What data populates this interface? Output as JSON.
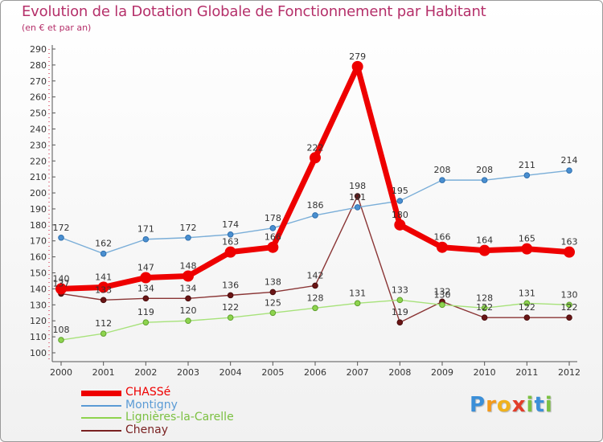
{
  "title": "Evolution de la Dotation Globale de Fonctionnement par Habitant",
  "subtitle": "(en € et par an)",
  "brand": {
    "letters": [
      "P",
      "r",
      "o",
      "x",
      "i",
      "t",
      "i"
    ],
    "colors": [
      "#3b8fd8",
      "#f39a1c",
      "#f0b21c",
      "#e23d2a",
      "#7cc142",
      "#3b8fd8",
      "#7cc142"
    ]
  },
  "chart_data": {
    "type": "line",
    "title": "Evolution de la Dotation Globale de Fonctionnement par Habitant",
    "xlabel": "",
    "ylabel": "",
    "x": [
      "2000",
      "2001",
      "2002",
      "2003",
      "2004",
      "2005",
      "2006",
      "2007",
      "2008",
      "2009",
      "2010",
      "2011",
      "2012"
    ],
    "ylim": [
      100,
      290
    ],
    "yticks": [
      100,
      110,
      120,
      130,
      140,
      150,
      160,
      170,
      180,
      190,
      200,
      210,
      220,
      230,
      240,
      250,
      260,
      270,
      280,
      290
    ],
    "grid": false,
    "legend_position": "bottom-left",
    "series": [
      {
        "name": "CHASSé",
        "color": "#ee0000",
        "values": [
          140,
          141,
          147,
          148,
          163,
          166,
          222,
          279,
          180,
          166,
          164,
          165,
          163
        ]
      },
      {
        "name": "Montigny",
        "color": "#5b9bd5",
        "values": [
          172,
          162,
          171,
          172,
          174,
          178,
          186,
          191,
          195,
          208,
          208,
          211,
          214
        ]
      },
      {
        "name": "Lignières-la-Carelle",
        "color": "#8ed44e",
        "values": [
          108,
          112,
          119,
          120,
          122,
          125,
          128,
          131,
          133,
          130,
          128,
          131,
          130
        ]
      },
      {
        "name": "Chenay",
        "color": "#7a2222",
        "values": [
          137,
          133,
          134,
          134,
          136,
          138,
          142,
          198,
          119,
          132,
          122,
          122,
          122
        ]
      }
    ]
  }
}
